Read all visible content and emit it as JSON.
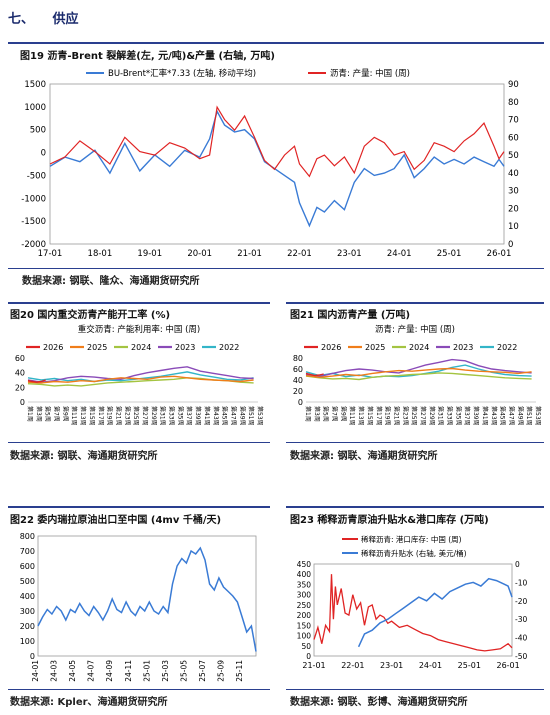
{
  "section": {
    "number": "七、",
    "title": "供应"
  },
  "colors": {
    "blue": "#3a7bd5",
    "red": "#e02424",
    "orange": "#f07d1a",
    "green": "#a4c441",
    "purple": "#8a4bb8",
    "teal": "#33b5c8"
  },
  "chart_data": [
    {
      "id": "fig19",
      "type": "line",
      "title": "图19  沥青-Brent 裂解差(左, 元/吨)&产量 (右轴, 万吨)",
      "x_ticks": [
        "17-01",
        "18-01",
        "19-01",
        "20-01",
        "21-01",
        "22-01",
        "23-01",
        "24-01",
        "25-01",
        "26-01"
      ],
      "ylim_left": [
        -2000,
        1500
      ],
      "ylim_right": [
        0,
        90
      ],
      "y_ticks_left": [
        1500,
        1000,
        500,
        0,
        -500,
        -1000,
        -1500,
        -2000
      ],
      "y_ticks_right": [
        90,
        80,
        70,
        60,
        50,
        40,
        30,
        20,
        10,
        0
      ],
      "series": [
        {
          "name": "BU-Brent*汇率*7.33 (左轴, 移动平均)",
          "axis": "left",
          "color": "#3a7bd5",
          "x": [
            2017.0,
            2017.3,
            2017.6,
            2017.9,
            2018.2,
            2018.5,
            2018.8,
            2019.1,
            2019.4,
            2019.7,
            2020.0,
            2020.2,
            2020.35,
            2020.5,
            2020.7,
            2020.9,
            2021.1,
            2021.3,
            2021.5,
            2021.7,
            2021.9,
            2022.0,
            2022.2,
            2022.35,
            2022.5,
            2022.7,
            2022.9,
            2023.1,
            2023.3,
            2023.5,
            2023.7,
            2023.9,
            2024.1,
            2024.3,
            2024.5,
            2024.7,
            2024.9,
            2025.1,
            2025.3,
            2025.5,
            2025.7,
            2025.9,
            2026.0,
            2026.1
          ],
          "y": [
            -300,
            -100,
            -200,
            50,
            -450,
            200,
            -400,
            -50,
            -300,
            50,
            -100,
            300,
            900,
            600,
            450,
            500,
            300,
            -200,
            -350,
            -500,
            -650,
            -1100,
            -1600,
            -1200,
            -1300,
            -1050,
            -1250,
            -650,
            -350,
            -500,
            -450,
            -350,
            -50,
            -550,
            -350,
            -100,
            -250,
            -150,
            -250,
            -100,
            -200,
            -300,
            -150,
            -300
          ]
        },
        {
          "name": "沥青: 产量: 中国 (周)",
          "axis": "right",
          "color": "#e02424",
          "x": [
            2017.0,
            2017.3,
            2017.6,
            2017.9,
            2018.2,
            2018.5,
            2018.8,
            2019.1,
            2019.4,
            2019.7,
            2020.0,
            2020.2,
            2020.35,
            2020.5,
            2020.7,
            2020.9,
            2021.1,
            2021.3,
            2021.5,
            2021.7,
            2021.9,
            2022.0,
            2022.2,
            2022.35,
            2022.5,
            2022.7,
            2022.9,
            2023.1,
            2023.3,
            2023.5,
            2023.7,
            2023.9,
            2024.1,
            2024.3,
            2024.5,
            2024.7,
            2024.9,
            2025.1,
            2025.3,
            2025.5,
            2025.7,
            2025.9,
            2026.0,
            2026.1
          ],
          "y": [
            45,
            49,
            58,
            52,
            45,
            60,
            52,
            50,
            57,
            54,
            48,
            50,
            77,
            70,
            64,
            72,
            60,
            47,
            42,
            50,
            55,
            45,
            38,
            48,
            50,
            44,
            49,
            40,
            55,
            60,
            57,
            50,
            52,
            42,
            47,
            57,
            55,
            52,
            58,
            62,
            68,
            55,
            48,
            52
          ]
        }
      ],
      "source": "数据来源: 钢联、隆众、海通期货研究所"
    },
    {
      "id": "fig20",
      "type": "line",
      "title": "图20  国内重交沥青产能开工率 (%)",
      "subtitle": "重交沥青: 产能利用率: 中国 (周)",
      "ylim": [
        0,
        60
      ],
      "y_ticks": [
        60,
        40,
        20,
        0
      ],
      "x_ticks": [
        "第1周",
        "第3周",
        "第5周",
        "第7周",
        "第9周",
        "第11周",
        "第13周",
        "第15周",
        "第17周",
        "第19周",
        "第21周",
        "第23周",
        "第25周",
        "第27周",
        "第29周",
        "第31周",
        "第33周",
        "第35周",
        "第37周",
        "第39周",
        "第41周",
        "第43周",
        "第45周",
        "第47周",
        "第49周",
        "第51周",
        "第53周"
      ],
      "series": [
        {
          "name": "2026",
          "color": "#e02424",
          "x": [
            1,
            2,
            3,
            4,
            5
          ],
          "y": [
            29,
            28,
            27,
            28,
            30
          ]
        },
        {
          "name": "2025",
          "color": "#f07d1a",
          "x": [
            1,
            4,
            7,
            10,
            13,
            16,
            19,
            22,
            25,
            28,
            31,
            34,
            37,
            40,
            43,
            46,
            49,
            52
          ],
          "y": [
            27,
            26,
            28,
            27,
            29,
            28,
            31,
            33,
            32,
            31,
            34,
            35,
            33,
            31,
            30,
            29,
            28,
            30
          ]
        },
        {
          "name": "2024",
          "color": "#a4c441",
          "x": [
            1,
            4,
            7,
            10,
            13,
            16,
            19,
            22,
            25,
            28,
            31,
            34,
            37,
            40,
            43,
            46,
            49,
            52
          ],
          "y": [
            25,
            24,
            22,
            23,
            22,
            24,
            26,
            27,
            28,
            29,
            30,
            31,
            33,
            32,
            30,
            29,
            27,
            26
          ]
        },
        {
          "name": "2023",
          "color": "#8a4bb8",
          "x": [
            1,
            4,
            7,
            10,
            13,
            16,
            19,
            22,
            25,
            28,
            31,
            34,
            37,
            40,
            43,
            46,
            49,
            52
          ],
          "y": [
            30,
            27,
            29,
            33,
            35,
            34,
            32,
            31,
            36,
            40,
            43,
            46,
            48,
            42,
            39,
            36,
            33,
            32
          ]
        },
        {
          "name": "2022",
          "color": "#33b5c8",
          "x": [
            1,
            4,
            7,
            10,
            13,
            16,
            19,
            22,
            25,
            28,
            31,
            34,
            37,
            40,
            43,
            46,
            49,
            52
          ],
          "y": [
            33,
            30,
            32,
            29,
            31,
            28,
            30,
            29,
            31,
            33,
            35,
            38,
            41,
            37,
            34,
            31,
            30,
            33
          ]
        }
      ],
      "source": "数据来源: 钢联、海通期货研究所"
    },
    {
      "id": "fig21",
      "type": "line",
      "title": "图21  国内沥青产量 (万吨)",
      "subtitle": "沥青: 产量: 中国 (周)",
      "ylim": [
        0,
        80
      ],
      "y_ticks": [
        80,
        60,
        40,
        20,
        0
      ],
      "x_ticks": [
        "第1周",
        "第3周",
        "第5周",
        "第7周",
        "第9周",
        "第11周",
        "第13周",
        "第15周",
        "第17周",
        "第19周",
        "第21周",
        "第23周",
        "第25周",
        "第27周",
        "第29周",
        "第31周",
        "第33周",
        "第35周",
        "第37周",
        "第39周",
        "第41周",
        "第43周",
        "第45周",
        "第47周",
        "第49周",
        "第51周",
        "第53周"
      ],
      "series": [
        {
          "name": "2026",
          "color": "#e02424",
          "x": [
            1,
            2,
            3,
            4,
            5
          ],
          "y": [
            52,
            50,
            48,
            49,
            51
          ]
        },
        {
          "name": "2025",
          "color": "#f07d1a",
          "x": [
            1,
            4,
            7,
            10,
            13,
            16,
            19,
            22,
            25,
            28,
            31,
            34,
            37,
            40,
            43,
            46,
            49,
            52
          ],
          "y": [
            48,
            45,
            47,
            50,
            48,
            52,
            55,
            57,
            56,
            58,
            60,
            61,
            58,
            56,
            55,
            54,
            52,
            55
          ]
        },
        {
          "name": "2024",
          "color": "#a4c441",
          "x": [
            1,
            4,
            7,
            10,
            13,
            16,
            19,
            22,
            25,
            28,
            31,
            34,
            37,
            40,
            43,
            46,
            49,
            52
          ],
          "y": [
            47,
            44,
            42,
            43,
            41,
            45,
            47,
            48,
            50,
            51,
            53,
            52,
            50,
            48,
            46,
            44,
            43,
            42
          ]
        },
        {
          "name": "2023",
          "color": "#8a4bb8",
          "x": [
            1,
            4,
            7,
            10,
            13,
            16,
            19,
            22,
            25,
            28,
            31,
            34,
            37,
            40,
            43,
            46,
            49,
            52
          ],
          "y": [
            50,
            46,
            52,
            57,
            60,
            58,
            55,
            53,
            60,
            67,
            72,
            77,
            75,
            66,
            60,
            57,
            55,
            53
          ]
        },
        {
          "name": "2022",
          "color": "#33b5c8",
          "x": [
            1,
            4,
            7,
            10,
            13,
            16,
            19,
            22,
            25,
            28,
            31,
            34,
            37,
            40,
            43,
            46,
            49,
            52
          ],
          "y": [
            55,
            48,
            52,
            46,
            49,
            45,
            47,
            46,
            48,
            52,
            56,
            63,
            67,
            60,
            54,
            50,
            48,
            47
          ]
        }
      ],
      "source": "数据来源: 钢联、海通期货研究所"
    },
    {
      "id": "fig22",
      "type": "line",
      "title": "图22  委内瑞拉原油出口至中国 (4mv 千桶/天)",
      "ylim": [
        0,
        800
      ],
      "y_ticks": [
        800,
        700,
        600,
        500,
        400,
        300,
        200,
        100,
        0
      ],
      "x_ticks": [
        "24-01",
        "24-03",
        "24-05",
        "24-07",
        "24-09",
        "24-11",
        "25-01",
        "25-03",
        "25-05",
        "25-07",
        "25-09",
        "25-11"
      ],
      "series": [
        {
          "name": "",
          "color": "#3a7bd5",
          "x": [
            0,
            0.5,
            1,
            1.5,
            2,
            2.5,
            3,
            3.5,
            4,
            4.5,
            5,
            5.5,
            6,
            6.5,
            7,
            7.5,
            8,
            8.5,
            9,
            9.5,
            10,
            10.5,
            11,
            11.5,
            12,
            12.5,
            13,
            13.5,
            14,
            14.5,
            15,
            15.5,
            16,
            16.5,
            17,
            17.5,
            18,
            18.5,
            19,
            19.5,
            20,
            20.5,
            21,
            21.5,
            22,
            22.5,
            23,
            23.5
          ],
          "y": [
            200,
            260,
            310,
            280,
            330,
            300,
            240,
            310,
            290,
            350,
            300,
            270,
            330,
            290,
            240,
            300,
            380,
            310,
            290,
            360,
            300,
            270,
            330,
            300,
            360,
            300,
            280,
            330,
            290,
            480,
            600,
            650,
            620,
            700,
            680,
            720,
            640,
            480,
            440,
            520,
            460,
            430,
            400,
            360,
            260,
            160,
            200,
            30
          ]
        }
      ],
      "source": "数据来源: Kpler、海通期货研究所"
    },
    {
      "id": "fig23",
      "type": "line",
      "title": "图23  稀释沥青原油升贴水&港口库存 (万吨)",
      "ylim_left": [
        0,
        450
      ],
      "ylim_right": [
        -50,
        0
      ],
      "y_ticks_left": [
        450,
        400,
        350,
        300,
        250,
        200,
        150,
        100,
        50,
        0
      ],
      "y_ticks_right": [
        0,
        -10,
        -20,
        -30,
        -40,
        -50
      ],
      "x_ticks": [
        "21-01",
        "22-01",
        "23-01",
        "24-01",
        "25-01",
        "26-01"
      ],
      "series": [
        {
          "name": "稀释沥青: 港口库存: 中国 (周)",
          "axis": "left",
          "color": "#e02424",
          "x": [
            2021.0,
            2021.1,
            2021.2,
            2021.3,
            2021.4,
            2021.45,
            2021.5,
            2021.55,
            2021.6,
            2021.7,
            2021.8,
            2021.9,
            2022.0,
            2022.1,
            2022.2,
            2022.3,
            2022.4,
            2022.5,
            2022.6,
            2022.7,
            2022.8,
            2022.9,
            2023.0,
            2023.2,
            2023.4,
            2023.6,
            2023.8,
            2024.0,
            2024.2,
            2024.4,
            2024.6,
            2024.8,
            2025.0,
            2025.2,
            2025.4,
            2025.6,
            2025.8,
            2026.0,
            2026.1
          ],
          "y": [
            80,
            140,
            60,
            150,
            120,
            400,
            180,
            340,
            250,
            330,
            210,
            200,
            300,
            230,
            260,
            150,
            240,
            250,
            180,
            200,
            190,
            160,
            170,
            140,
            150,
            130,
            110,
            100,
            80,
            70,
            60,
            50,
            40,
            30,
            25,
            30,
            35,
            60,
            40
          ]
        },
        {
          "name": "稀释沥青升贴水 (右轴, 美元/桶)",
          "axis": "right",
          "color": "#3a7bd5",
          "x": [
            2022.15,
            2022.3,
            2022.5,
            2022.7,
            2022.9,
            2023.1,
            2023.3,
            2023.5,
            2023.7,
            2023.9,
            2024.1,
            2024.3,
            2024.5,
            2024.7,
            2024.9,
            2025.1,
            2025.3,
            2025.5,
            2025.7,
            2025.9,
            2026.0,
            2026.1
          ],
          "y": [
            -45,
            -38,
            -36,
            -32,
            -30,
            -27,
            -24,
            -21,
            -18,
            -20,
            -16,
            -19,
            -15,
            -13,
            -11,
            -10,
            -12,
            -8,
            -9,
            -11,
            -12,
            -18
          ]
        }
      ],
      "source": "数据来源: 钢联、彭博、海通期货研究所"
    }
  ]
}
